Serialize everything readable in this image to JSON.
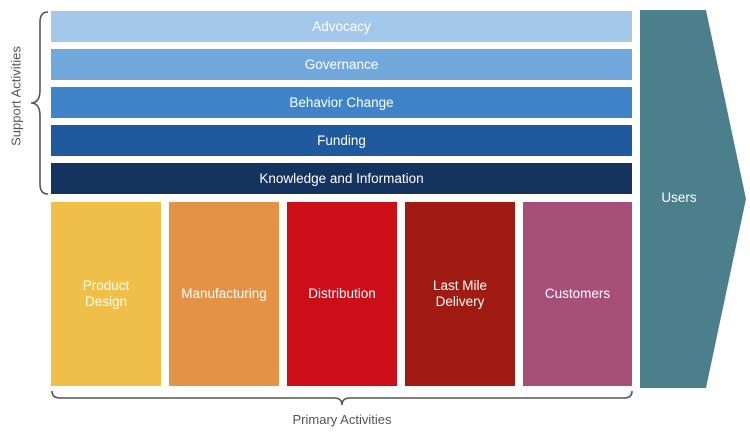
{
  "support": {
    "label": "Support Activities",
    "bars": [
      {
        "label": "Advocacy",
        "color": "#a3c8ea"
      },
      {
        "label": "Governance",
        "color": "#72a9dd"
      },
      {
        "label": "Behavior Change",
        "color": "#3f84c8"
      },
      {
        "label": "Funding",
        "color": "#1f5a9f"
      },
      {
        "label": "Knowledge and Information",
        "color": "#14335f"
      }
    ]
  },
  "primary": {
    "label": "Primary Activities",
    "boxes": [
      {
        "label": "Product\nDesign",
        "color": "#f0bf47"
      },
      {
        "label": "Manufacturing",
        "color": "#e39246"
      },
      {
        "label": "Distribution",
        "color": "#cc0e19"
      },
      {
        "label": "Last Mile\nDelivery",
        "color": "#a01c12"
      },
      {
        "label": "Customers",
        "color": "#a74f78"
      }
    ]
  },
  "users": {
    "label": "Users",
    "color": "#4b7f8c"
  },
  "colors": {
    "bracket": "#555555",
    "text_muted": "#555555"
  }
}
